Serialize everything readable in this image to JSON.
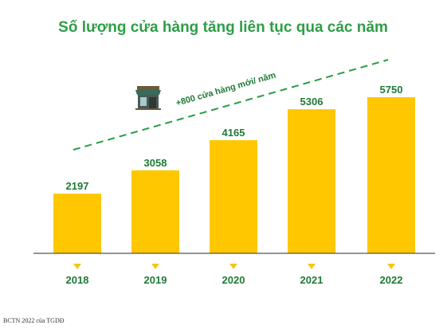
{
  "chart_data": {
    "type": "bar",
    "title": "Số lượng cửa hàng tăng liên tục qua các năm",
    "categories": [
      "2018",
      "2019",
      "2020",
      "2021",
      "2022"
    ],
    "values": [
      2197,
      3058,
      4165,
      5306,
      5750
    ],
    "ylim": [
      0,
      6000
    ],
    "grid": false,
    "annotation": "+800 cửa hàng mới/ năm",
    "trend_line": "dashed",
    "colors": {
      "bar": "#ffc700",
      "text": "#1f7a36",
      "title": "#2e9e46",
      "marker": "#f5c518",
      "trend": "#2e9e46"
    },
    "icon": "store-icon"
  },
  "source": "BCTN 2022 của TGDĐ"
}
